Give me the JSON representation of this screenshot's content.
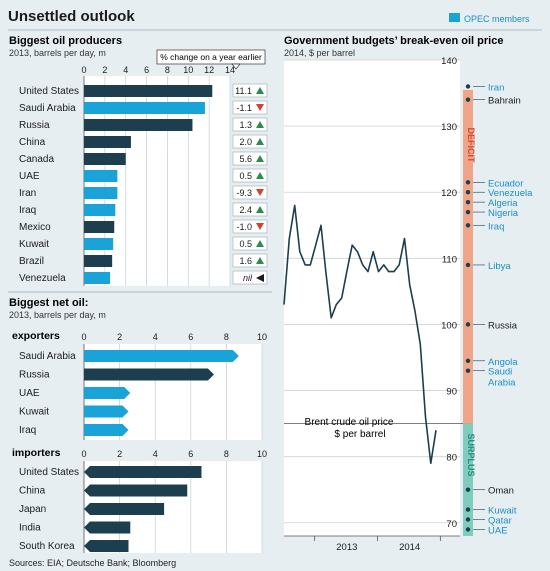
{
  "title": "Unsettled outlook",
  "legend": {
    "label": "OPEC members",
    "color": "#1aa3d9"
  },
  "footer": "Sources: EIA; Deutsche Bank; Bloomberg",
  "colors": {
    "opec": "#1aa3d9",
    "other": "#1d3e4f",
    "deficit": "#f0a488",
    "surplus": "#7fcdbd",
    "deficit_text": "#d9452c",
    "surplus_text": "#2a8d7c",
    "up": "#2a8d4a",
    "down": "#d9402c",
    "iran_label": "#1a8fc6"
  },
  "chart_data": [
    {
      "type": "bar",
      "title": "Biggest oil producers",
      "subtitle": "2013, barrels per day, m",
      "change_header": "% change on a year earlier",
      "xlim": [
        0,
        14
      ],
      "ticks": [
        0,
        2,
        4,
        6,
        8,
        10,
        12,
        14
      ],
      "categories": [
        "United States",
        "Saudi Arabia",
        "Russia",
        "China",
        "Canada",
        "UAE",
        "Iran",
        "Iraq",
        "Mexico",
        "Kuwait",
        "Brazil",
        "Venezuela"
      ],
      "values": [
        12.3,
        11.6,
        10.4,
        4.5,
        4.0,
        3.2,
        3.2,
        3.0,
        2.9,
        2.8,
        2.7,
        2.5
      ],
      "opec": [
        false,
        true,
        false,
        false,
        false,
        true,
        true,
        true,
        false,
        true,
        false,
        true
      ],
      "change": [
        "11.1",
        "-1.1",
        "1.3",
        "2.0",
        "5.6",
        "0.5",
        "-9.3",
        "2.4",
        "-1.0",
        "0.5",
        "1.6",
        "nil"
      ],
      "direction": [
        "up",
        "down",
        "up",
        "up",
        "up",
        "up",
        "down",
        "up",
        "down",
        "up",
        "up",
        "flat"
      ]
    },
    {
      "type": "bar",
      "title": "Biggest net oil:",
      "subtitle": "2013, barrels per day, m",
      "group_label": "exporters",
      "xlim": [
        0,
        10
      ],
      "ticks": [
        0,
        2,
        4,
        6,
        8,
        10
      ],
      "categories": [
        "Saudi Arabia",
        "Russia",
        "UAE",
        "Kuwait",
        "Iraq"
      ],
      "values": [
        8.7,
        7.3,
        2.6,
        2.5,
        2.5
      ],
      "opec": [
        true,
        false,
        true,
        true,
        true
      ]
    },
    {
      "type": "bar",
      "group_label": "importers",
      "xlim": [
        0,
        10
      ],
      "ticks": [
        0,
        2,
        4,
        6,
        8,
        10
      ],
      "categories": [
        "United States",
        "China",
        "Japan",
        "India",
        "South Korea"
      ],
      "values": [
        6.6,
        5.8,
        4.5,
        2.6,
        2.5
      ],
      "opec": [
        false,
        false,
        false,
        false,
        false
      ]
    },
    {
      "type": "line",
      "title": "Government budgets’ break-even oil price",
      "subtitle": "2014, $ per barrel",
      "ylim": [
        68,
        140
      ],
      "ticks": [
        70,
        80,
        90,
        100,
        110,
        120,
        130,
        140
      ],
      "x_tick_labels": [
        "2013",
        "2014"
      ],
      "threshold": 85,
      "deficit_label": "DEFICIT",
      "surplus_label": "SURPLUS",
      "series_label": [
        "Brent crude oil price",
        "$ per barrel"
      ],
      "brent_month": [
        "2012-07",
        "2012-08",
        "2012-09",
        "2012-10",
        "2012-11",
        "2012-12",
        "2013-01",
        "2013-02",
        "2013-03",
        "2013-04",
        "2013-05",
        "2013-06",
        "2013-07",
        "2013-08",
        "2013-09",
        "2013-10",
        "2013-11",
        "2013-12",
        "2014-01",
        "2014-02",
        "2014-03",
        "2014-04",
        "2014-05",
        "2014-06",
        "2014-07",
        "2014-08",
        "2014-09",
        "2014-10",
        "2014-11",
        "2014-12"
      ],
      "brent": [
        103,
        113,
        118,
        111,
        109,
        109,
        112,
        115,
        108,
        101,
        103,
        104,
        108,
        112,
        111,
        109,
        108,
        111,
        108,
        109,
        108,
        108,
        109,
        113,
        106,
        102,
        97,
        86,
        79,
        84
      ],
      "countries": [
        {
          "name": "Iran",
          "value": 136,
          "opec": true
        },
        {
          "name": "Bahrain",
          "value": 134,
          "opec": false
        },
        {
          "name": "Ecuador",
          "value": 121.5,
          "opec": true
        },
        {
          "name": "Venezuela",
          "value": 120,
          "opec": true
        },
        {
          "name": "Algeria",
          "value": 118.5,
          "opec": true
        },
        {
          "name": "Nigeria",
          "value": 117,
          "opec": true
        },
        {
          "name": "Iraq",
          "value": 115,
          "opec": true
        },
        {
          "name": "Libya",
          "value": 109,
          "opec": true
        },
        {
          "name": "Russia",
          "value": 100,
          "opec": false
        },
        {
          "name": "Angola",
          "value": 94.5,
          "opec": true
        },
        {
          "name": "Saudi Arabia",
          "value": 93,
          "opec": true
        },
        {
          "name": "Oman",
          "value": 75,
          "opec": false
        },
        {
          "name": "Kuwait",
          "value": 72,
          "opec": true
        },
        {
          "name": "Qatar",
          "value": 70.5,
          "opec": true
        },
        {
          "name": "UAE",
          "value": 69,
          "opec": true
        }
      ]
    }
  ]
}
